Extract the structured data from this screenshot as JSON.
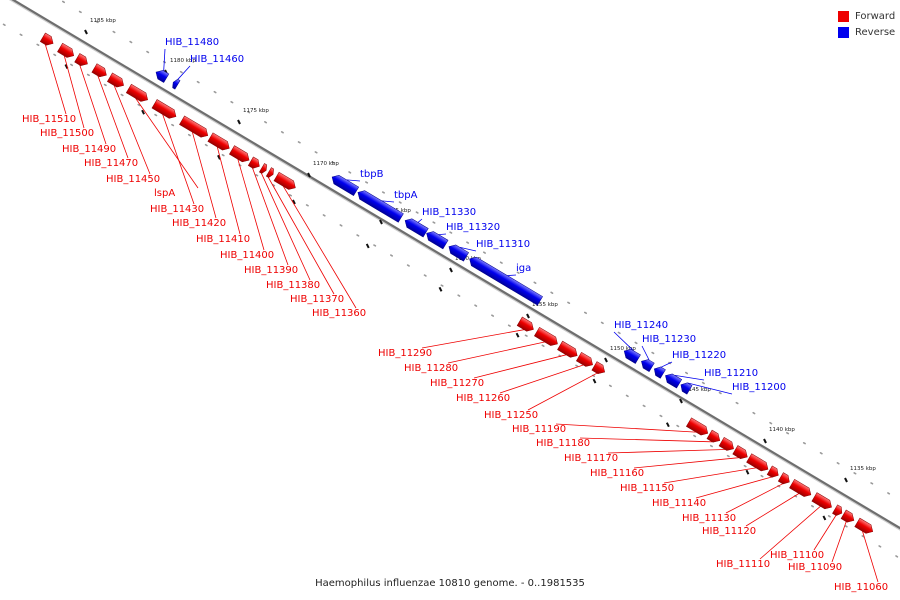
{
  "legend": {
    "forward_label": "Forward",
    "reverse_label": "Reverse",
    "forward_color": "#ee0000",
    "reverse_color": "#0000ee"
  },
  "caption": "Haemophilus influenzae 10810 genome. - 0..1981535",
  "ticks": [
    {
      "label": "1185 kbp"
    },
    {
      "label": "1180 kbp"
    },
    {
      "label": "1175 kbp"
    },
    {
      "label": "1170 kbp"
    },
    {
      "label": "1165 kbp"
    },
    {
      "label": "1160 kbp"
    },
    {
      "label": "1155 kbp"
    },
    {
      "label": "1150 kbp"
    },
    {
      "label": "1145 kbp"
    },
    {
      "label": "1140 kbp"
    },
    {
      "label": "1135 kbp"
    }
  ],
  "genes": [
    {
      "label": "HIB_11510",
      "strand": "forward"
    },
    {
      "label": "HIB_11500",
      "strand": "forward"
    },
    {
      "label": "HIB_11490",
      "strand": "forward"
    },
    {
      "label": "HIB_11480",
      "strand": "reverse"
    },
    {
      "label": "HIB_11470",
      "strand": "forward"
    },
    {
      "label": "HIB_11460",
      "strand": "reverse"
    },
    {
      "label": "HIB_11450",
      "strand": "forward"
    },
    {
      "label": "lspA",
      "strand": "forward"
    },
    {
      "label": "HIB_11430",
      "strand": "forward"
    },
    {
      "label": "HIB_11420",
      "strand": "forward"
    },
    {
      "label": "HIB_11410",
      "strand": "forward"
    },
    {
      "label": "HIB_11400",
      "strand": "forward"
    },
    {
      "label": "HIB_11390",
      "strand": "forward"
    },
    {
      "label": "HIB_11380",
      "strand": "forward"
    },
    {
      "label": "HIB_11370",
      "strand": "forward"
    },
    {
      "label": "HIB_11360",
      "strand": "forward"
    },
    {
      "label": "tbpB",
      "strand": "reverse"
    },
    {
      "label": "tbpA",
      "strand": "reverse"
    },
    {
      "label": "HIB_11330",
      "strand": "reverse"
    },
    {
      "label": "HIB_11320",
      "strand": "reverse"
    },
    {
      "label": "HIB_11310",
      "strand": "reverse"
    },
    {
      "label": "iga",
      "strand": "reverse"
    },
    {
      "label": "HIB_11290",
      "strand": "forward"
    },
    {
      "label": "HIB_11280",
      "strand": "forward"
    },
    {
      "label": "HIB_11270",
      "strand": "forward"
    },
    {
      "label": "HIB_11260",
      "strand": "forward"
    },
    {
      "label": "HIB_11250",
      "strand": "forward"
    },
    {
      "label": "HIB_11240",
      "strand": "reverse"
    },
    {
      "label": "HIB_11230",
      "strand": "reverse"
    },
    {
      "label": "HIB_11220",
      "strand": "reverse"
    },
    {
      "label": "HIB_11210",
      "strand": "reverse"
    },
    {
      "label": "HIB_11200",
      "strand": "reverse"
    },
    {
      "label": "HIB_11190",
      "strand": "forward"
    },
    {
      "label": "HIB_11180",
      "strand": "forward"
    },
    {
      "label": "HIB_11170",
      "strand": "forward"
    },
    {
      "label": "HIB_11160",
      "strand": "forward"
    },
    {
      "label": "HIB_11150",
      "strand": "forward"
    },
    {
      "label": "HIB_11140",
      "strand": "forward"
    },
    {
      "label": "HIB_11130",
      "strand": "forward"
    },
    {
      "label": "HIB_11120",
      "strand": "forward"
    },
    {
      "label": "HIB_11110",
      "strand": "forward"
    },
    {
      "label": "HIB_11100",
      "strand": "forward"
    },
    {
      "label": "HIB_11090",
      "strand": "forward"
    },
    {
      "label": "HIB_11060",
      "strand": "forward"
    }
  ]
}
